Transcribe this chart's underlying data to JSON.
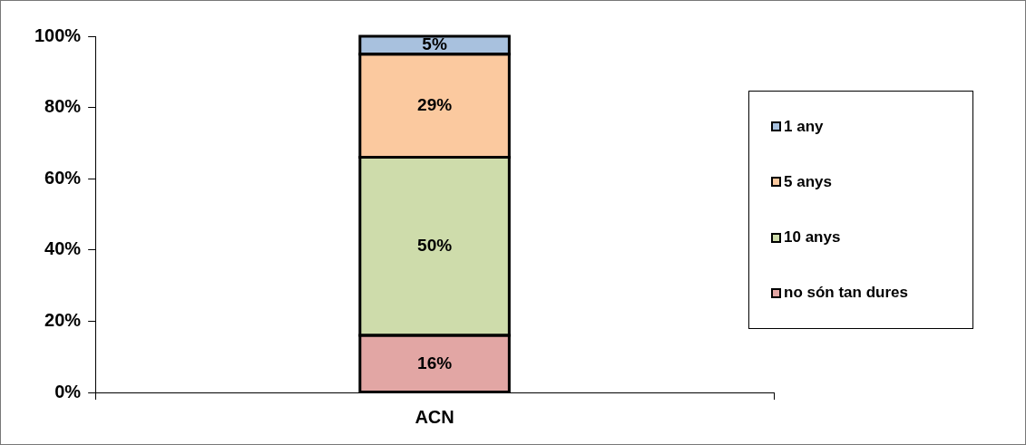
{
  "chart_data": {
    "type": "bar",
    "stacked": true,
    "categories": [
      "ACN"
    ],
    "series": [
      {
        "name": "no són tan dures",
        "color": "#e2a6a4",
        "values": [
          16
        ],
        "value_labels": [
          "16%"
        ]
      },
      {
        "name": "10 anys",
        "color": "#cedcab",
        "values": [
          50
        ],
        "value_labels": [
          "50%"
        ]
      },
      {
        "name": "5 anys",
        "color": "#fbc99f",
        "values": [
          29
        ],
        "value_labels": [
          "29%"
        ]
      },
      {
        "name": "1 any",
        "color": "#a8c1de",
        "values": [
          5
        ],
        "value_labels": [
          "5%"
        ]
      }
    ],
    "ylim": [
      0,
      100
    ],
    "yticks": [
      {
        "value": 0,
        "label": "0%"
      },
      {
        "value": 20,
        "label": "20%"
      },
      {
        "value": 40,
        "label": "40%"
      },
      {
        "value": 60,
        "label": "60%"
      },
      {
        "value": 80,
        "label": "80%"
      },
      {
        "value": 100,
        "label": "100%"
      }
    ],
    "grid": false,
    "legend": "right"
  }
}
